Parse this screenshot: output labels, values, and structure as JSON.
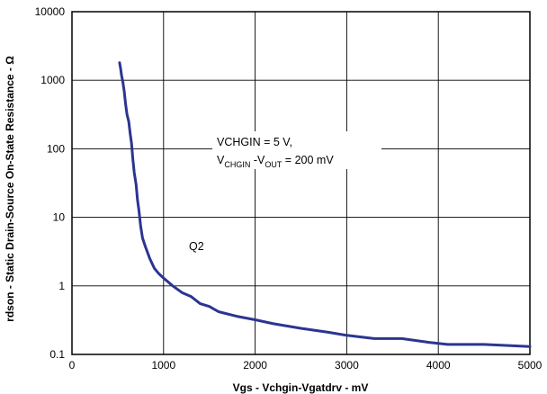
{
  "chart_data": {
    "type": "line",
    "xlabel": "Vgs - Vchgin-Vgatdrv - mV",
    "ylabel": "rdson - Static Drain-Source On-State Resistance - Ω",
    "xlim": [
      0,
      5000
    ],
    "ylim": [
      0.1,
      10000
    ],
    "yscale": "log",
    "grid": true,
    "x_ticks": [
      "0",
      "1000",
      "2000",
      "3000",
      "4000",
      "5000"
    ],
    "y_ticks": [
      "0.1",
      "1",
      "10",
      "100",
      "1000",
      "10000"
    ],
    "annotations": {
      "condition_line1": "VCHGIN = 5 V,",
      "condition_line2": {
        "v1": "V",
        "v1_sub": "CHGIN",
        "mid": " -V",
        "v2_sub": "OUT",
        "tail": " = 200 mV"
      },
      "series_label": "Q2"
    },
    "series": [
      {
        "name": "Q2",
        "color": "#2b3591",
        "points": [
          [
            520,
            1800
          ],
          [
            530,
            1500
          ],
          [
            540,
            1200
          ],
          [
            555,
            950
          ],
          [
            570,
            700
          ],
          [
            585,
            450
          ],
          [
            600,
            320
          ],
          [
            620,
            250
          ],
          [
            635,
            170
          ],
          [
            650,
            120
          ],
          [
            665,
            70
          ],
          [
            680,
            45
          ],
          [
            700,
            30
          ],
          [
            715,
            18
          ],
          [
            730,
            13
          ],
          [
            750,
            7.5
          ],
          [
            770,
            5
          ],
          [
            800,
            3.8
          ],
          [
            850,
            2.5
          ],
          [
            900,
            1.8
          ],
          [
            950,
            1.5
          ],
          [
            1000,
            1.3
          ],
          [
            1100,
            1.0
          ],
          [
            1200,
            0.8
          ],
          [
            1300,
            0.7
          ],
          [
            1400,
            0.55
          ],
          [
            1500,
            0.5
          ],
          [
            1600,
            0.42
          ],
          [
            1800,
            0.36
          ],
          [
            2000,
            0.32
          ],
          [
            2200,
            0.28
          ],
          [
            2500,
            0.24
          ],
          [
            2800,
            0.21
          ],
          [
            3000,
            0.19
          ],
          [
            3300,
            0.17
          ],
          [
            3600,
            0.17
          ],
          [
            3900,
            0.15
          ],
          [
            4100,
            0.14
          ],
          [
            4500,
            0.14
          ],
          [
            5000,
            0.13
          ]
        ]
      }
    ]
  }
}
